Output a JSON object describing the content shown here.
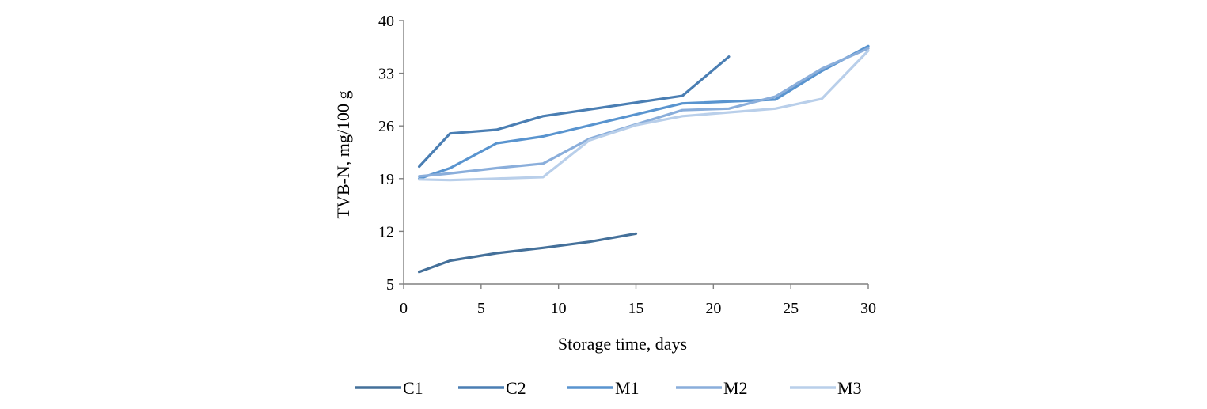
{
  "chart_data": {
    "type": "line",
    "title": "",
    "xlabel": "Storage time,  days",
    "ylabel": "TVB-N,  mg/100 g",
    "xlim": [
      0,
      30
    ],
    "ylim": [
      5,
      40
    ],
    "xticks": [
      "0",
      "5",
      "10",
      "15",
      "20",
      "25",
      "30"
    ],
    "yticks": [
      "5",
      "12",
      "19",
      "26",
      "33",
      "40"
    ],
    "grid": false,
    "legend_position": "bottom",
    "series": [
      {
        "name": "C1",
        "color": "#44709a",
        "x": [
          1,
          3,
          6,
          9,
          12,
          15
        ],
        "y": [
          6.6,
          8.1,
          9.1,
          9.8,
          10.6,
          11.7
        ]
      },
      {
        "name": "C2",
        "color": "#4a7eb3",
        "x": [
          1,
          3,
          6,
          9,
          18,
          21
        ],
        "y": [
          20.6,
          25.0,
          25.5,
          27.3,
          30.0,
          35.2
        ]
      },
      {
        "name": "M1",
        "color": "#5994cf",
        "x": [
          1,
          3,
          6,
          9,
          18,
          24,
          27,
          30
        ],
        "y": [
          19.0,
          20.4,
          23.7,
          24.6,
          29.0,
          29.5,
          33.3,
          36.6
        ]
      },
      {
        "name": "M2",
        "color": "#8aaedb",
        "x": [
          1,
          3,
          6,
          9,
          12,
          18,
          21,
          24,
          27,
          30
        ],
        "y": [
          19.3,
          19.7,
          20.4,
          21.0,
          24.3,
          28.1,
          28.3,
          29.9,
          33.6,
          36.3
        ]
      },
      {
        "name": "M3",
        "color": "#b9cfea",
        "x": [
          1,
          3,
          6,
          9,
          12,
          15,
          18,
          24,
          27,
          30
        ],
        "y": [
          18.9,
          18.8,
          19.0,
          19.2,
          24.1,
          26.1,
          27.3,
          28.3,
          29.6,
          36.0
        ]
      }
    ]
  }
}
